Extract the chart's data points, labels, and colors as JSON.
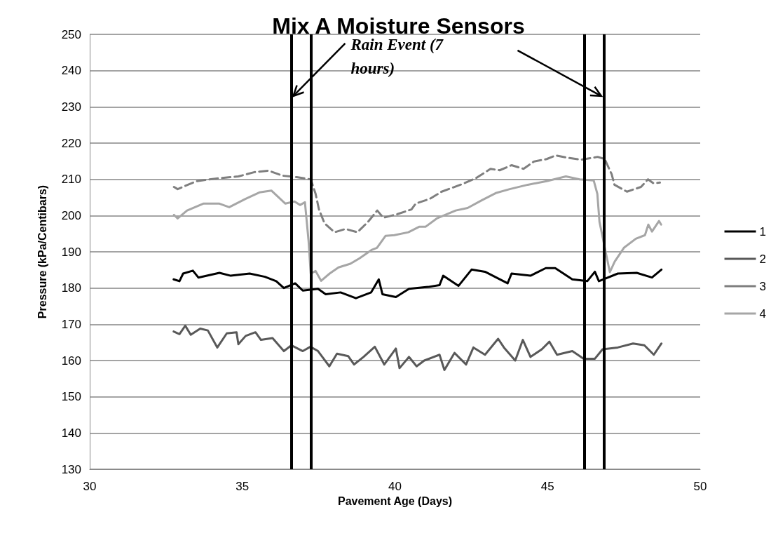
{
  "chart_data": {
    "type": "line",
    "title": "Mix A Moisture Sensors",
    "xlabel": "Pavement Age (Days)",
    "ylabel": "Pressure (kPa/Centibars)",
    "xlim": [
      30,
      50
    ],
    "xticks": [
      30,
      35,
      40,
      45,
      50
    ],
    "ylim": [
      130,
      250
    ],
    "yticks": [
      130,
      140,
      150,
      160,
      170,
      180,
      190,
      200,
      210,
      220,
      230,
      240,
      250
    ],
    "grid": "y",
    "legend": "right",
    "marker": "none",
    "annotations": [
      {
        "text": "Rain Event (7 hours)",
        "x": 36.6,
        "y": 233
      }
    ],
    "ref_lines": [
      {
        "axis": "x",
        "value": 36.6,
        "color": "#000000"
      },
      {
        "axis": "x",
        "value": 37.25,
        "color": "#000000"
      },
      {
        "axis": "x",
        "value": 46.2,
        "color": "#000000"
      },
      {
        "axis": "x",
        "value": 46.85,
        "color": "#000000"
      }
    ],
    "series": [
      {
        "name": "1",
        "color": "#000000",
        "line_style": "solid",
        "x": [
          32.75,
          32.94,
          33.06,
          33.38,
          33.56,
          34.25,
          34.62,
          35.24,
          35.74,
          36.11,
          36.36,
          36.73,
          36.98,
          37.48,
          37.73,
          38.22,
          38.72,
          39.22,
          39.47,
          39.59,
          40.03,
          40.46,
          41.08,
          41.46,
          41.58,
          42.08,
          42.51,
          42.95,
          43.69,
          43.82,
          44.44,
          44.94,
          45.25,
          45.81,
          46.3,
          46.55,
          46.68,
          47.3,
          47.92,
          48.42,
          48.73
        ],
        "values": [
          182.4,
          181.9,
          184,
          184.8,
          182.9,
          184.2,
          183.4,
          184,
          183.1,
          181.9,
          180,
          181.3,
          179.3,
          179.8,
          178.3,
          178.8,
          177.2,
          178.8,
          182.4,
          178.3,
          177.5,
          179.8,
          180.3,
          180.8,
          183.4,
          180.6,
          185.1,
          184.5,
          181.3,
          184,
          183.4,
          185.5,
          185.5,
          182.4,
          181.9,
          184.5,
          181.9,
          184,
          184.2,
          182.9,
          185.1
        ]
      },
      {
        "name": "2",
        "color": "#595959",
        "line_style": "solid",
        "x": [
          32.75,
          32.94,
          33.13,
          33.31,
          33.62,
          33.87,
          34.18,
          34.49,
          34.81,
          34.87,
          35.11,
          35.43,
          35.61,
          35.99,
          36.36,
          36.61,
          36.98,
          37.23,
          37.48,
          37.85,
          38.1,
          38.47,
          38.66,
          38.97,
          39.34,
          39.65,
          40.03,
          40.15,
          40.46,
          40.71,
          40.96,
          41.46,
          41.62,
          41.95,
          42.33,
          42.57,
          42.95,
          43.38,
          43.57,
          43.94,
          44.19,
          44.44,
          44.81,
          45.06,
          45.31,
          45.81,
          46.18,
          46.55,
          46.8,
          47.3,
          47.8,
          48.17,
          48.48,
          48.73
        ],
        "values": [
          168,
          167.3,
          169.6,
          167.1,
          168.8,
          168.3,
          163.6,
          167.5,
          167.8,
          164.5,
          166.8,
          167.8,
          165.7,
          166.2,
          162.6,
          164.2,
          162.6,
          163.8,
          162.6,
          158.4,
          161.9,
          161.2,
          158.9,
          161,
          163.8,
          158.9,
          163.3,
          157.9,
          161,
          158.4,
          160,
          161.6,
          157.4,
          162.1,
          158.9,
          163.6,
          161.6,
          166,
          163.6,
          160,
          165.7,
          161,
          163.1,
          165.2,
          161.6,
          162.6,
          160.5,
          160.5,
          163.1,
          163.6,
          164.7,
          164.2,
          161.6,
          164.7
        ]
      },
      {
        "name": "3",
        "color": "#7f7f7f",
        "line_style": "dashed",
        "x": [
          32.76,
          32.88,
          33.5,
          34.12,
          34.87,
          35.4,
          35.86,
          36.32,
          36.78,
          37.24,
          37.4,
          37.51,
          37.69,
          38.02,
          38.38,
          38.77,
          39.12,
          39.42,
          39.62,
          40.08,
          40.54,
          40.68,
          41.14,
          41.53,
          42.21,
          42.67,
          43.13,
          43.43,
          43.82,
          44.21,
          44.55,
          44.97,
          45.27,
          45.63,
          46.09,
          46.64,
          46.87,
          47.1,
          47.19,
          47.6,
          48.06,
          48.29,
          48.47,
          48.68
        ],
        "values": [
          207.9,
          207.3,
          209.5,
          210.2,
          210.8,
          212,
          212.4,
          211,
          210.6,
          210,
          206,
          201.7,
          197.9,
          195.4,
          196.3,
          195.4,
          198.3,
          201.4,
          199.4,
          200.4,
          201.7,
          203.3,
          204.6,
          206.6,
          208.7,
          210.4,
          212.9,
          212.5,
          213.9,
          212.9,
          214.9,
          215.6,
          216.6,
          216,
          215.4,
          216.2,
          215.6,
          211.4,
          208.5,
          206.6,
          207.9,
          210,
          208.9,
          209.1
        ]
      },
      {
        "name": "4",
        "color": "#a6a6a6",
        "line_style": "solid",
        "x": [
          32.76,
          32.88,
          33.19,
          33.72,
          34.25,
          34.57,
          35.1,
          35.56,
          35.95,
          36.41,
          36.71,
          36.89,
          37.05,
          37.17,
          37.24,
          37.4,
          37.58,
          37.86,
          38.15,
          38.54,
          38.84,
          39.23,
          39.41,
          39.69,
          39.98,
          40.44,
          40.79,
          41,
          41.37,
          41.99,
          42.38,
          42.84,
          43.3,
          43.76,
          44.35,
          44.97,
          45.6,
          46.05,
          46.51,
          46.63,
          46.7,
          46.86,
          47.04,
          47.2,
          47.5,
          47.89,
          48.19,
          48.3,
          48.42,
          48.65,
          48.72
        ],
        "values": [
          200.2,
          199.2,
          201.4,
          203.3,
          203.3,
          202.3,
          204.6,
          206.4,
          206.9,
          203.3,
          203.9,
          202.9,
          203.7,
          193,
          184,
          184.7,
          182,
          184,
          185.7,
          186.7,
          188.2,
          190.5,
          191.1,
          194.4,
          194.6,
          195.4,
          196.9,
          196.9,
          199.2,
          201.4,
          202.1,
          204.2,
          206.2,
          207.3,
          208.5,
          209.5,
          210.8,
          210,
          209.7,
          206,
          198.3,
          191.7,
          184.4,
          187.3,
          191.1,
          193.6,
          194.6,
          197.5,
          195.6,
          198.5,
          197.5
        ]
      }
    ]
  }
}
